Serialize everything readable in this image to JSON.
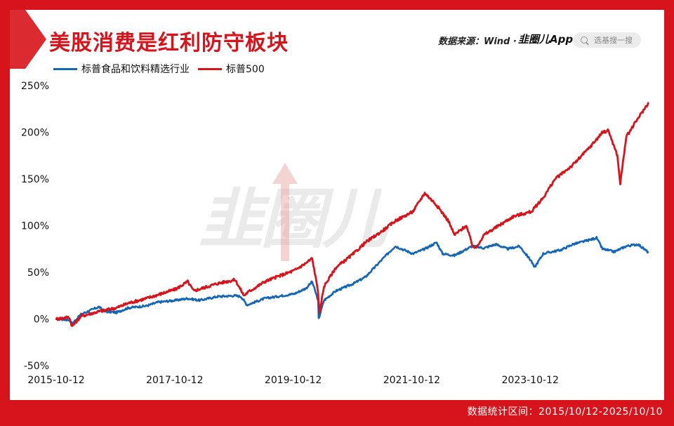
{
  "title": "美股消费是红利防守板块",
  "source": "数据来源：Wind · ",
  "brand": "韭圈儿App",
  "search_placeholder": "选基搜一搜",
  "watermark": "韭圈儿",
  "footer": "数据统计区间：2015/10/12-2025/10/10",
  "colors": {
    "frame": "#d7141b",
    "series_blue": "#1666b8",
    "series_red": "#d7141b"
  },
  "icons": {
    "search": "search-icon",
    "watermark_arrow": "up-arrow-icon"
  },
  "chart_data": {
    "type": "line",
    "ylim": [
      -50,
      250
    ],
    "yticks": [
      "250%",
      "200%",
      "150%",
      "100%",
      "50%",
      "0%",
      "-50%"
    ],
    "ytick_values": [
      250,
      200,
      150,
      100,
      50,
      0,
      -50
    ],
    "xticks": [
      "2015-10-12",
      "2017-10-12",
      "2019-10-12",
      "2021-10-12",
      "2023-10-12"
    ],
    "xtick_values": [
      2015.78,
      2017.78,
      2019.78,
      2021.78,
      2023.78
    ],
    "xlim": [
      2015.78,
      2025.78
    ],
    "legend_position": "top-left",
    "series": [
      {
        "name": "标普食品和饮料精选行业",
        "color": "#1666b8",
        "x": [
          2015.78,
          2016.0,
          2016.05,
          2016.2,
          2016.5,
          2016.6,
          2016.8,
          2017.0,
          2017.3,
          2017.5,
          2017.8,
          2018.0,
          2018.2,
          2018.5,
          2018.8,
          2018.9,
          2019.0,
          2019.3,
          2019.5,
          2019.8,
          2020.0,
          2020.1,
          2020.2,
          2020.21,
          2020.3,
          2020.5,
          2020.8,
          2021.0,
          2021.3,
          2021.5,
          2021.8,
          2022.0,
          2022.2,
          2022.3,
          2022.5,
          2022.8,
          2023.0,
          2023.2,
          2023.4,
          2023.6,
          2023.8,
          2023.85,
          2024.0,
          2024.3,
          2024.5,
          2024.8,
          2024.9,
          2025.0,
          2025.2,
          2025.4,
          2025.6,
          2025.78
        ],
        "values": [
          0,
          -1,
          -5,
          5,
          13,
          8,
          7,
          12,
          14,
          18,
          20,
          22,
          20,
          24,
          25,
          24,
          15,
          22,
          24,
          27,
          33,
          40,
          20,
          0,
          20,
          30,
          38,
          45,
          65,
          78,
          70,
          75,
          82,
          70,
          68,
          78,
          76,
          80,
          75,
          78,
          62,
          55,
          70,
          74,
          80,
          85,
          87,
          75,
          72,
          78,
          80,
          71
        ]
      },
      {
        "name": "标普500",
        "color": "#d7141b",
        "x": [
          2015.78,
          2016.0,
          2016.05,
          2016.2,
          2016.5,
          2016.8,
          2017.0,
          2017.3,
          2017.5,
          2017.8,
          2018.0,
          2018.1,
          2018.2,
          2018.5,
          2018.8,
          2018.95,
          2019.0,
          2019.3,
          2019.5,
          2019.8,
          2020.0,
          2020.1,
          2020.2,
          2020.22,
          2020.3,
          2020.5,
          2020.8,
          2021.0,
          2021.3,
          2021.5,
          2021.8,
          2022.0,
          2022.2,
          2022.4,
          2022.5,
          2022.7,
          2022.8,
          2022.85,
          2023.0,
          2023.2,
          2023.5,
          2023.8,
          2024.0,
          2024.2,
          2024.5,
          2024.8,
          2025.0,
          2025.1,
          2025.25,
          2025.3,
          2025.4,
          2025.6,
          2025.78
        ],
        "values": [
          0,
          2,
          -8,
          3,
          8,
          12,
          17,
          22,
          26,
          32,
          40,
          30,
          32,
          38,
          42,
          25,
          28,
          40,
          45,
          52,
          60,
          65,
          30,
          5,
          35,
          55,
          70,
          82,
          95,
          105,
          115,
          135,
          122,
          105,
          90,
          100,
          80,
          75,
          90,
          98,
          110,
          115,
          130,
          150,
          165,
          185,
          200,
          202,
          175,
          145,
          195,
          215,
          232
        ]
      }
    ]
  }
}
